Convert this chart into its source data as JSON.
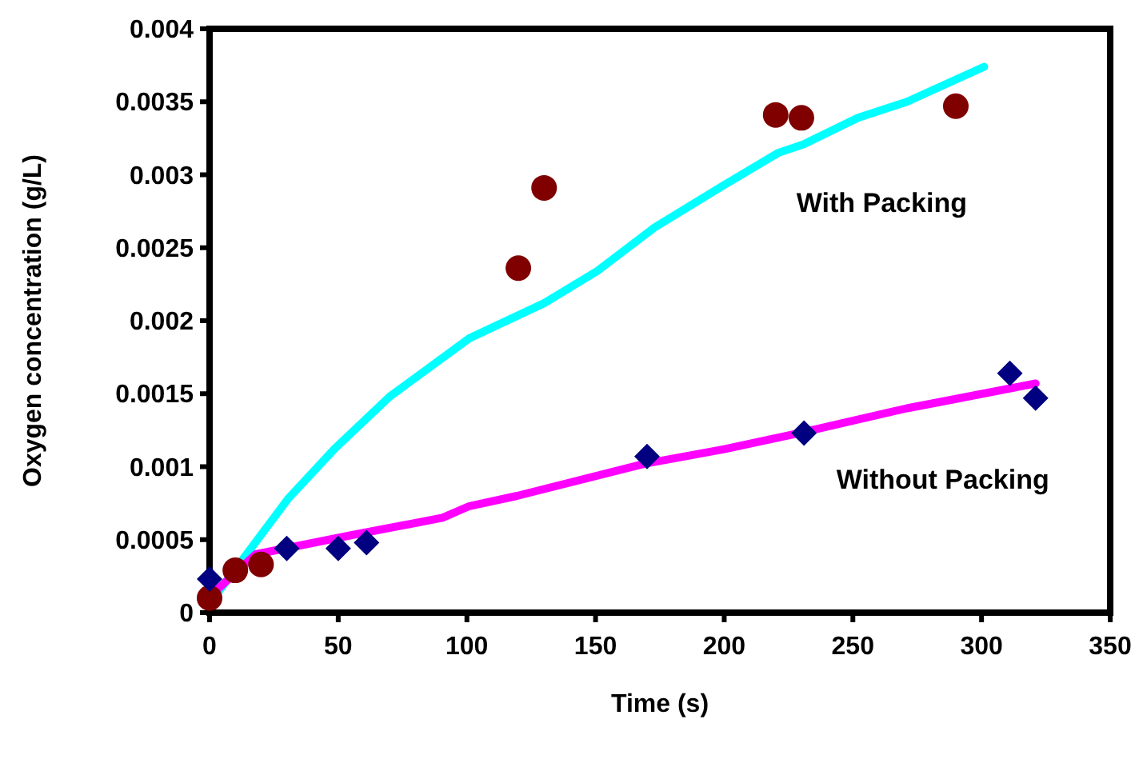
{
  "chart_data": {
    "type": "scatter",
    "xlabel": "Time (s)",
    "ylabel": "Oxygen concentration (g/L)",
    "xlim": [
      0,
      350
    ],
    "ylim": [
      0,
      0.004
    ],
    "xticks": [
      0,
      50,
      100,
      150,
      200,
      250,
      300,
      350
    ],
    "yticks": [
      0,
      0.0005,
      0.001,
      0.0015,
      0.002,
      0.0025,
      0.003,
      0.0035,
      0.004
    ],
    "grid": false,
    "legend": false,
    "series": [
      {
        "name": "With Packing",
        "type": "line",
        "marker": "none",
        "color": "#00ffff",
        "x": [
          2.5,
          30.5,
          49,
          70,
          101,
          130,
          150.6,
          173,
          200,
          221,
          231,
          252,
          271,
          301
        ],
        "values": [
          0.00012,
          0.00078,
          0.00113,
          0.00148,
          0.00188,
          0.00212,
          0.00234,
          0.00264,
          0.00293,
          0.00315,
          0.00321,
          0.00339,
          0.0035,
          0.00374
        ]
      },
      {
        "name": "Without Packing",
        "type": "line",
        "marker": "none",
        "color": "#ff00ff",
        "x": [
          0,
          18,
          55,
          90.5,
          101,
          119.5,
          169,
          200,
          229,
          271,
          280,
          321
        ],
        "values": [
          0.00011,
          0.0004,
          0.00053,
          0.00065,
          0.00073,
          0.0008,
          0.00102,
          0.00112,
          0.00123,
          0.0014,
          0.00143,
          0.00157
        ]
      },
      {
        "marker": "circle",
        "color": "#800000",
        "x": [
          0,
          10,
          20,
          120,
          130,
          220,
          230,
          290
        ],
        "values": [
          0.0001,
          0.00029,
          0.00033,
          0.00236,
          0.00291,
          0.00341,
          0.00339,
          0.00347
        ]
      },
      {
        "marker": "diamond",
        "color": "#000080",
        "x": [
          0,
          30,
          50,
          61,
          170,
          231,
          311,
          321
        ],
        "values": [
          0.00023,
          0.00044,
          0.00044,
          0.00048,
          0.00107,
          0.00123,
          0.00164,
          0.00147
        ]
      }
    ]
  }
}
